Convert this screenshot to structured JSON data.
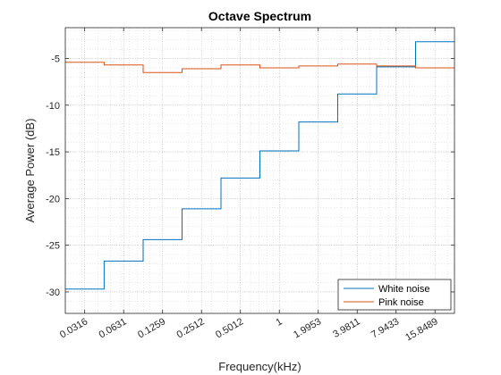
{
  "chart_data": {
    "type": "line",
    "step": true,
    "title": "Octave Spectrum",
    "xlabel": "Frequency(kHz)",
    "ylabel": "Average Power (dB)",
    "x_scale": "log",
    "xlim": [
      0.0224,
      22.4
    ],
    "ylim": [
      -32.3,
      -1.7
    ],
    "grid": true,
    "minor_grid": true,
    "xticks": [
      0.0316,
      0.0631,
      0.1259,
      0.2512,
      0.5012,
      1,
      1.9953,
      3.9811,
      7.9433,
      15.8489
    ],
    "xtick_labels": [
      "0.0316",
      "0.0631",
      "0.1259",
      "0.2512",
      "0.5012",
      "1",
      "1.9953",
      "3.9811",
      "7.9433",
      "15.8489"
    ],
    "yticks": [
      -30,
      -25,
      -20,
      -15,
      -10,
      -5
    ],
    "ytick_labels": [
      "-30",
      "-25",
      "-20",
      "-15",
      "-10",
      "-5"
    ],
    "legend_position": "bottom-right",
    "x": [
      0.0316,
      0.0631,
      0.1259,
      0.2512,
      0.5012,
      1,
      1.9953,
      3.9811,
      7.9433,
      15.8489
    ],
    "series": [
      {
        "name": "White noise",
        "color": "#0072BD",
        "values": [
          -29.7,
          -26.7,
          -24.4,
          -21.1,
          -17.8,
          -14.9,
          -11.8,
          -8.8,
          -5.9,
          -3.2
        ]
      },
      {
        "name": "Pink noise",
        "color": "#D95319",
        "values": [
          -5.4,
          -5.7,
          -6.5,
          -6.1,
          -5.7,
          -6.0,
          -5.8,
          -5.6,
          -5.8,
          -6.0
        ]
      }
    ]
  }
}
